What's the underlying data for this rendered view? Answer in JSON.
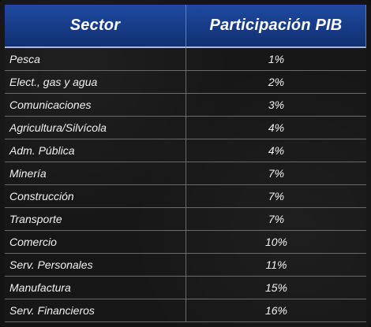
{
  "table": {
    "headers": {
      "sector": "Sector",
      "participation": "Participación PIB"
    },
    "rows": [
      {
        "sector": "Pesca",
        "value": "1%"
      },
      {
        "sector": "Elect., gas y agua",
        "value": "2%"
      },
      {
        "sector": "Comunicaciones",
        "value": "3%"
      },
      {
        "sector": "Agricultura/Silvícola",
        "value": "4%"
      },
      {
        "sector": "Adm. Pública",
        "value": "4%"
      },
      {
        "sector": "Minería",
        "value": "7%"
      },
      {
        "sector": "Construcción",
        "value": "7%"
      },
      {
        "sector": "Transporte",
        "value": "7%"
      },
      {
        "sector": "Comercio",
        "value": "10%"
      },
      {
        "sector": "Serv. Personales",
        "value": "11%"
      },
      {
        "sector": "Manufactura",
        "value": "15%"
      },
      {
        "sector": "Serv. Financieros",
        "value": "16%"
      }
    ]
  },
  "colors": {
    "header_blue": "#163a84",
    "background": "#141414",
    "text": "#f1f1f1",
    "grid_line": "#6a6a6a"
  }
}
